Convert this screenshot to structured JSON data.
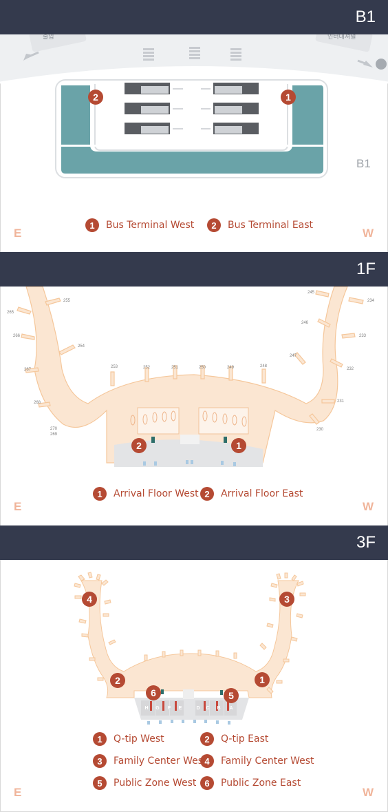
{
  "sections": {
    "b1": {
      "floor_label": "B1",
      "inner_label": "B1",
      "east": "E",
      "west": "W",
      "sign_left": "출입",
      "sign_right": "인터내셔널",
      "legend": [
        {
          "num": "1",
          "text": "Bus Terminal West"
        },
        {
          "num": "2",
          "text": "Bus Terminal East"
        }
      ],
      "markers": [
        "2",
        "1"
      ]
    },
    "f1": {
      "floor_label": "1F",
      "east": "E",
      "west": "W",
      "legend": [
        {
          "num": "1",
          "text": "Arrival Floor West"
        },
        {
          "num": "2",
          "text": "Arrival Floor East"
        }
      ],
      "markers": [
        "2",
        "1"
      ],
      "gates": [
        "255",
        "265",
        "266",
        "254",
        "267",
        "253",
        "252",
        "251",
        "250",
        "249",
        "248",
        "268",
        "270",
        "269",
        "245",
        "234",
        "246",
        "233",
        "247",
        "232",
        "231",
        "230"
      ]
    },
    "f3": {
      "floor_label": "3F",
      "east": "E",
      "west": "W",
      "legend": [
        {
          "num": "1",
          "text": "Q-tip West"
        },
        {
          "num": "2",
          "text": "Q-tip East"
        },
        {
          "num": "3",
          "text": "Family Center West"
        },
        {
          "num": "4",
          "text": "Family Center West"
        },
        {
          "num": "5",
          "text": "Public Zone West"
        },
        {
          "num": "6",
          "text": "Public Zone East"
        }
      ],
      "markers": [
        "4",
        "3",
        "2",
        "1",
        "6",
        "5"
      ],
      "counters": [
        "H",
        "G",
        "F",
        "E",
        "D",
        "C",
        "B",
        "A"
      ]
    }
  },
  "colors": {
    "header_bg": "#343a4d",
    "marker": "#b54a33",
    "terminal_fill": "#fbe6d2",
    "terminal_stroke": "#f5c79b",
    "bus_teal": "#6aa3a8",
    "direction": "#f0b49a"
  }
}
